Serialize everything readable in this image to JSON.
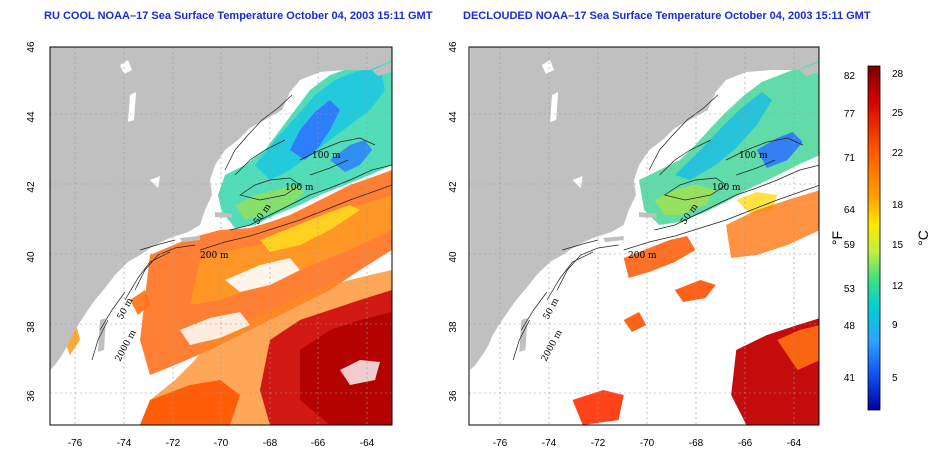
{
  "titles": {
    "left": "RU COOL NOAA–17 Sea Surface Temperature October 04, 2003 15:11 GMT",
    "right": "DECLOUDED NOAA–17 Sea Surface Temperature October 04, 2003 15:11 GMT"
  },
  "map": {
    "lon_ticks": [
      "-76",
      "-74",
      "-72",
      "-70",
      "-68",
      "-66",
      "-64"
    ],
    "lat_ticks": [
      "46",
      "44",
      "42",
      "40",
      "38",
      "36"
    ],
    "contour_labels": {
      "left": [
        "100 m",
        "100 m",
        "50 m",
        "200 m",
        "50 m",
        "2000 m"
      ],
      "right": [
        "100 m",
        "100 m",
        "50 m",
        "200 m",
        "50 m",
        "2000 m"
      ]
    },
    "colors": {
      "land": "#c0c0c0",
      "ocean_nodata": "#ffffff",
      "frame": "#000000",
      "grid": "#9a9a9a"
    }
  },
  "colorbar": {
    "fahrenheit_ticks": [
      "82",
      "77",
      "71",
      "64",
      "59",
      "53",
      "48",
      "41"
    ],
    "celsius_ticks": [
      "28",
      "25",
      "22",
      "18",
      "15",
      "12",
      "9",
      "5"
    ],
    "fahrenheit_unit": "°F",
    "celsius_unit": "°C",
    "gradient": [
      "#7a0000",
      "#d40000",
      "#ff5a00",
      "#ffa000",
      "#ffe800",
      "#c0f040",
      "#40e080",
      "#00d0d0",
      "#30a0ff",
      "#1050f0",
      "#0000a0"
    ]
  }
}
